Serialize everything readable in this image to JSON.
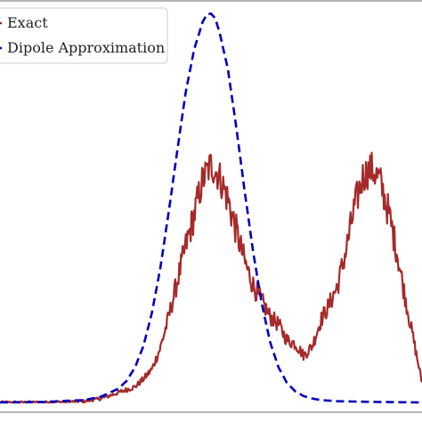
{
  "chart_data": {
    "type": "line",
    "title": "",
    "xlabel": "",
    "ylabel": "",
    "xlim": [
      0,
      100
    ],
    "ylim": [
      0,
      100
    ],
    "grid": false,
    "legend_placement": "top-left",
    "series": [
      {
        "name": "Exact",
        "color": "#a52a2a",
        "style": "solid",
        "noisy": true,
        "x": [
          0,
          10,
          20,
          24,
          28,
          32,
          34,
          36,
          38,
          40,
          42,
          44,
          46,
          48,
          50,
          52,
          54,
          56,
          58,
          60,
          62,
          64,
          66,
          68,
          70,
          72,
          74,
          76,
          78,
          80,
          82,
          84,
          86,
          88,
          90,
          92,
          94,
          96,
          98,
          100
        ],
        "y": [
          0,
          0,
          0.3,
          1.0,
          2.5,
          4.0,
          6.0,
          8.5,
          14.0,
          22.0,
          31.0,
          40.0,
          48.0,
          57.0,
          61.0,
          58.0,
          52.0,
          44.0,
          36.0,
          30.0,
          26.0,
          22.0,
          20.0,
          16.0,
          15.0,
          12.0,
          14.5,
          21.0,
          25.0,
          30.0,
          39.0,
          50.0,
          58.0,
          60.0,
          57.0,
          49.0,
          39.0,
          27.0,
          16.0,
          5.0
        ]
      },
      {
        "name": "Dipole Approximation",
        "color": "#0000bb",
        "style": "dashed",
        "noisy": false,
        "x": [
          0,
          10,
          20,
          24,
          28,
          30,
          32,
          34,
          36,
          38,
          40,
          42,
          44,
          46,
          48,
          49,
          50,
          51,
          52,
          54,
          56,
          58,
          60,
          62,
          64,
          66,
          68,
          70,
          72,
          74,
          76,
          80,
          90,
          100
        ],
        "y": [
          0,
          0.1,
          0.6,
          1.5,
          3.5,
          5.5,
          9.0,
          14.5,
          23.0,
          34.5,
          49.0,
          64.5,
          79.5,
          90.5,
          97.5,
          99.5,
          99.7,
          98.5,
          95.0,
          85.5,
          70.5,
          54.0,
          38.5,
          25.5,
          15.5,
          9.0,
          5.0,
          2.8,
          1.6,
          1.0,
          0.6,
          0.3,
          0.1,
          0.0
        ]
      }
    ]
  }
}
